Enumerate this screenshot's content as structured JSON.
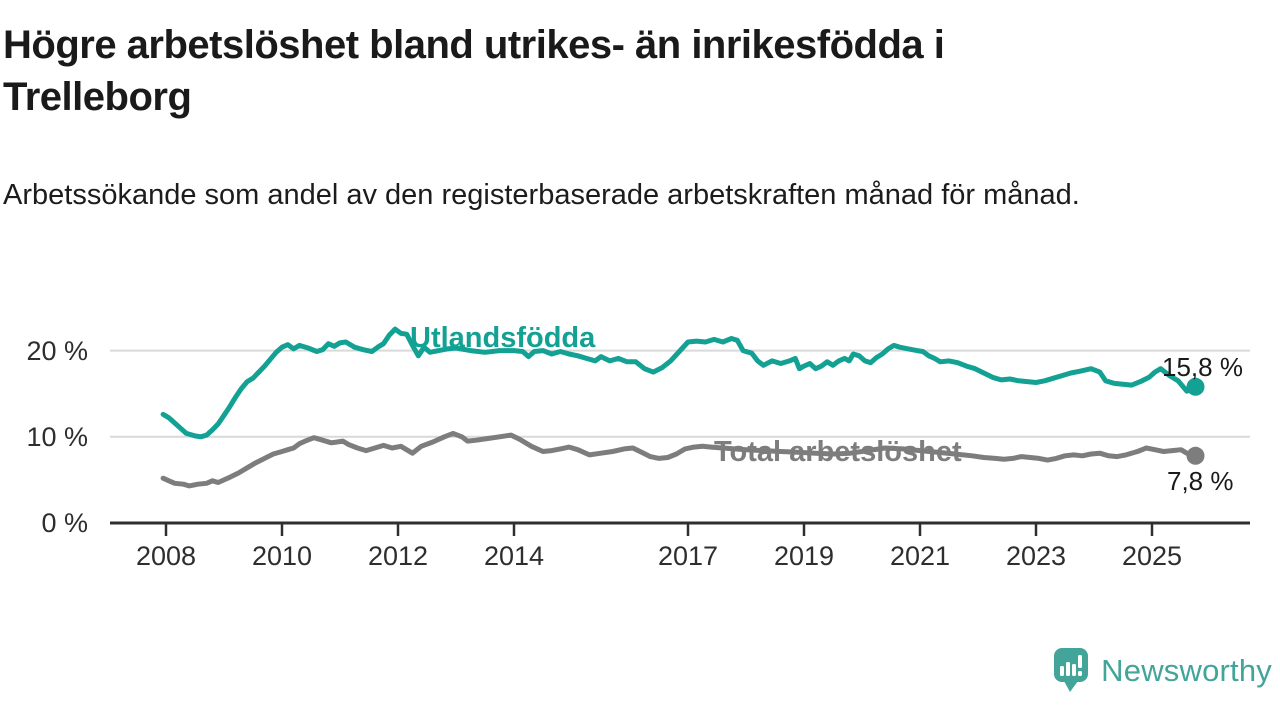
{
  "header": {
    "title": "Högre arbetslöshet bland utrikes- än inrikesfödda i Trelleborg",
    "subtitle": "Arbetssökande som andel av den registerbaserade arbetskraften månad för månad."
  },
  "footer": {
    "brand": "Newsworthy"
  },
  "colors": {
    "accent_teal": "#12a193",
    "series_gray": "#7d7d7d",
    "brand_teal": "#43a49a",
    "axis": "#2f2f2f",
    "grid": "#d9d9d9",
    "text": "#1a1a1a"
  },
  "chart_data": {
    "type": "line",
    "title": "Högre arbetslöshet bland utrikes- än inrikesfödda i Trelleborg",
    "subtitle": "Arbetssökande som andel av den registerbaserade arbetskraften månad för månad.",
    "unit": "%",
    "xlim": [
      2007.05,
      2026.55
    ],
    "ylim": [
      0,
      24
    ],
    "grid": true,
    "legend_position": "inline-labels",
    "xticks": [
      2008,
      2010,
      2012,
      2014,
      2017,
      2019,
      2021,
      2023,
      2025
    ],
    "yticks": [
      {
        "value": 0,
        "label": "0 %"
      },
      {
        "value": 10,
        "label": "10 %"
      },
      {
        "value": 20,
        "label": "20 %"
      }
    ],
    "grid_values": [
      10,
      20
    ],
    "series": [
      {
        "name": "Utlandsfödda",
        "color": "#12a193",
        "end_value": 15.8,
        "end_label": "15,8 %",
        "points": [
          [
            2007.95,
            12.6
          ],
          [
            2008.05,
            12.2
          ],
          [
            2008.15,
            11.6
          ],
          [
            2008.25,
            11.0
          ],
          [
            2008.35,
            10.4
          ],
          [
            2008.5,
            10.1
          ],
          [
            2008.6,
            10.0
          ],
          [
            2008.7,
            10.2
          ],
          [
            2008.8,
            10.8
          ],
          [
            2008.9,
            11.5
          ],
          [
            2009.0,
            12.5
          ],
          [
            2009.1,
            13.5
          ],
          [
            2009.2,
            14.6
          ],
          [
            2009.3,
            15.6
          ],
          [
            2009.4,
            16.4
          ],
          [
            2009.5,
            16.8
          ],
          [
            2009.6,
            17.5
          ],
          [
            2009.7,
            18.2
          ],
          [
            2009.8,
            19.0
          ],
          [
            2009.9,
            19.8
          ],
          [
            2010.0,
            20.4
          ],
          [
            2010.1,
            20.7
          ],
          [
            2010.2,
            20.2
          ],
          [
            2010.3,
            20.6
          ],
          [
            2010.45,
            20.3
          ],
          [
            2010.6,
            19.9
          ],
          [
            2010.7,
            20.1
          ],
          [
            2010.8,
            20.8
          ],
          [
            2010.9,
            20.5
          ],
          [
            2011.0,
            20.9
          ],
          [
            2011.1,
            21.0
          ],
          [
            2011.25,
            20.4
          ],
          [
            2011.4,
            20.1
          ],
          [
            2011.55,
            19.9
          ],
          [
            2011.65,
            20.4
          ],
          [
            2011.75,
            20.8
          ],
          [
            2011.85,
            21.8
          ],
          [
            2011.95,
            22.5
          ],
          [
            2012.05,
            22.0
          ],
          [
            2012.15,
            21.9
          ],
          [
            2012.25,
            20.6
          ],
          [
            2012.35,
            19.4
          ],
          [
            2012.45,
            20.4
          ],
          [
            2012.55,
            19.8
          ],
          [
            2012.7,
            20.0
          ],
          [
            2012.85,
            20.2
          ],
          [
            2013.0,
            20.3
          ],
          [
            2013.25,
            20.0
          ],
          [
            2013.5,
            19.8
          ],
          [
            2013.75,
            20.0
          ],
          [
            2014.0,
            20.0
          ],
          [
            2014.15,
            19.9
          ],
          [
            2014.25,
            19.3
          ],
          [
            2014.35,
            19.9
          ],
          [
            2014.5,
            20.0
          ],
          [
            2014.65,
            19.6
          ],
          [
            2014.8,
            19.9
          ],
          [
            2014.95,
            19.6
          ],
          [
            2015.1,
            19.4
          ],
          [
            2015.25,
            19.1
          ],
          [
            2015.4,
            18.8
          ],
          [
            2015.5,
            19.3
          ],
          [
            2015.65,
            18.8
          ],
          [
            2015.8,
            19.1
          ],
          [
            2015.95,
            18.7
          ],
          [
            2016.1,
            18.7
          ],
          [
            2016.25,
            17.9
          ],
          [
            2016.4,
            17.5
          ],
          [
            2016.55,
            18.0
          ],
          [
            2016.7,
            18.8
          ],
          [
            2016.85,
            19.9
          ],
          [
            2017.0,
            21.0
          ],
          [
            2017.15,
            21.1
          ],
          [
            2017.3,
            21.0
          ],
          [
            2017.45,
            21.3
          ],
          [
            2017.6,
            21.0
          ],
          [
            2017.75,
            21.4
          ],
          [
            2017.85,
            21.2
          ],
          [
            2017.95,
            20.0
          ],
          [
            2018.1,
            19.7
          ],
          [
            2018.2,
            18.8
          ],
          [
            2018.3,
            18.3
          ],
          [
            2018.45,
            18.8
          ],
          [
            2018.6,
            18.5
          ],
          [
            2018.75,
            18.8
          ],
          [
            2018.85,
            19.1
          ],
          [
            2018.92,
            17.9
          ],
          [
            2019.0,
            18.2
          ],
          [
            2019.1,
            18.5
          ],
          [
            2019.2,
            17.9
          ],
          [
            2019.3,
            18.2
          ],
          [
            2019.4,
            18.7
          ],
          [
            2019.5,
            18.3
          ],
          [
            2019.6,
            18.8
          ],
          [
            2019.7,
            19.1
          ],
          [
            2019.78,
            18.8
          ],
          [
            2019.85,
            19.6
          ],
          [
            2019.95,
            19.4
          ],
          [
            2020.05,
            18.8
          ],
          [
            2020.15,
            18.6
          ],
          [
            2020.25,
            19.2
          ],
          [
            2020.35,
            19.6
          ],
          [
            2020.45,
            20.2
          ],
          [
            2020.55,
            20.6
          ],
          [
            2020.65,
            20.4
          ],
          [
            2020.8,
            20.2
          ],
          [
            2020.95,
            20.0
          ],
          [
            2021.05,
            19.9
          ],
          [
            2021.15,
            19.4
          ],
          [
            2021.25,
            19.1
          ],
          [
            2021.35,
            18.7
          ],
          [
            2021.5,
            18.8
          ],
          [
            2021.65,
            18.6
          ],
          [
            2021.8,
            18.2
          ],
          [
            2021.95,
            17.9
          ],
          [
            2022.1,
            17.4
          ],
          [
            2022.25,
            16.9
          ],
          [
            2022.4,
            16.6
          ],
          [
            2022.55,
            16.7
          ],
          [
            2022.7,
            16.5
          ],
          [
            2022.85,
            16.4
          ],
          [
            2023.0,
            16.3
          ],
          [
            2023.15,
            16.5
          ],
          [
            2023.3,
            16.8
          ],
          [
            2023.45,
            17.1
          ],
          [
            2023.6,
            17.4
          ],
          [
            2023.75,
            17.6
          ],
          [
            2023.95,
            17.9
          ],
          [
            2024.1,
            17.5
          ],
          [
            2024.2,
            16.5
          ],
          [
            2024.35,
            16.2
          ],
          [
            2024.5,
            16.1
          ],
          [
            2024.65,
            16.0
          ],
          [
            2024.8,
            16.4
          ],
          [
            2024.95,
            16.9
          ],
          [
            2025.05,
            17.5
          ],
          [
            2025.15,
            17.9
          ],
          [
            2025.3,
            17.1
          ],
          [
            2025.45,
            16.5
          ],
          [
            2025.6,
            15.3
          ],
          [
            2025.68,
            15.5
          ],
          [
            2025.75,
            15.8
          ]
        ]
      },
      {
        "name": "Total arbetslöshet",
        "color": "#7d7d7d",
        "end_value": 7.8,
        "end_label": "7,8 %",
        "points": [
          [
            2007.95,
            5.2
          ],
          [
            2008.05,
            4.9
          ],
          [
            2008.15,
            4.6
          ],
          [
            2008.3,
            4.5
          ],
          [
            2008.4,
            4.3
          ],
          [
            2008.55,
            4.5
          ],
          [
            2008.7,
            4.6
          ],
          [
            2008.8,
            4.9
          ],
          [
            2008.9,
            4.7
          ],
          [
            2009.0,
            5.0
          ],
          [
            2009.1,
            5.3
          ],
          [
            2009.25,
            5.8
          ],
          [
            2009.4,
            6.4
          ],
          [
            2009.55,
            7.0
          ],
          [
            2009.7,
            7.5
          ],
          [
            2009.85,
            8.0
          ],
          [
            2010.0,
            8.3
          ],
          [
            2010.1,
            8.5
          ],
          [
            2010.2,
            8.7
          ],
          [
            2010.3,
            9.2
          ],
          [
            2010.4,
            9.5
          ],
          [
            2010.55,
            9.9
          ],
          [
            2010.7,
            9.6
          ],
          [
            2010.85,
            9.3
          ],
          [
            2010.95,
            9.4
          ],
          [
            2011.05,
            9.5
          ],
          [
            2011.15,
            9.1
          ],
          [
            2011.3,
            8.7
          ],
          [
            2011.45,
            8.4
          ],
          [
            2011.6,
            8.7
          ],
          [
            2011.75,
            9.0
          ],
          [
            2011.9,
            8.7
          ],
          [
            2012.05,
            8.9
          ],
          [
            2012.25,
            8.1
          ],
          [
            2012.4,
            8.9
          ],
          [
            2012.6,
            9.4
          ],
          [
            2012.8,
            10.0
          ],
          [
            2012.95,
            10.4
          ],
          [
            2013.1,
            10.0
          ],
          [
            2013.2,
            9.5
          ],
          [
            2013.35,
            9.6
          ],
          [
            2013.55,
            9.8
          ],
          [
            2013.75,
            10.0
          ],
          [
            2013.95,
            10.2
          ],
          [
            2014.1,
            9.7
          ],
          [
            2014.3,
            8.9
          ],
          [
            2014.5,
            8.3
          ],
          [
            2014.65,
            8.4
          ],
          [
            2014.8,
            8.6
          ],
          [
            2014.95,
            8.8
          ],
          [
            2015.1,
            8.5
          ],
          [
            2015.3,
            7.9
          ],
          [
            2015.5,
            8.1
          ],
          [
            2015.7,
            8.3
          ],
          [
            2015.9,
            8.6
          ],
          [
            2016.05,
            8.7
          ],
          [
            2016.2,
            8.2
          ],
          [
            2016.35,
            7.7
          ],
          [
            2016.5,
            7.5
          ],
          [
            2016.65,
            7.6
          ],
          [
            2016.8,
            8.0
          ],
          [
            2016.95,
            8.6
          ],
          [
            2017.1,
            8.8
          ],
          [
            2017.25,
            8.9
          ],
          [
            2017.4,
            8.8
          ],
          [
            2017.6,
            8.7
          ],
          [
            2017.8,
            8.6
          ],
          [
            2018.0,
            8.5
          ],
          [
            2018.3,
            8.4
          ],
          [
            2018.6,
            8.3
          ],
          [
            2018.9,
            8.2
          ],
          [
            2019.2,
            8.1
          ],
          [
            2019.5,
            8.0
          ],
          [
            2019.8,
            8.1
          ],
          [
            2020.1,
            8.4
          ],
          [
            2020.4,
            8.7
          ],
          [
            2020.7,
            8.6
          ],
          [
            2021.0,
            8.4
          ],
          [
            2021.3,
            8.2
          ],
          [
            2021.6,
            8.0
          ],
          [
            2021.9,
            7.8
          ],
          [
            2022.1,
            7.6
          ],
          [
            2022.3,
            7.5
          ],
          [
            2022.45,
            7.4
          ],
          [
            2022.6,
            7.5
          ],
          [
            2022.75,
            7.7
          ],
          [
            2022.9,
            7.6
          ],
          [
            2023.05,
            7.5
          ],
          [
            2023.2,
            7.3
          ],
          [
            2023.35,
            7.5
          ],
          [
            2023.5,
            7.8
          ],
          [
            2023.65,
            7.9
          ],
          [
            2023.8,
            7.8
          ],
          [
            2023.95,
            8.0
          ],
          [
            2024.1,
            8.1
          ],
          [
            2024.25,
            7.8
          ],
          [
            2024.4,
            7.7
          ],
          [
            2024.55,
            7.9
          ],
          [
            2024.75,
            8.3
          ],
          [
            2024.9,
            8.7
          ],
          [
            2025.05,
            8.5
          ],
          [
            2025.2,
            8.3
          ],
          [
            2025.35,
            8.4
          ],
          [
            2025.5,
            8.5
          ],
          [
            2025.6,
            8.1
          ],
          [
            2025.75,
            7.8
          ]
        ]
      }
    ]
  }
}
